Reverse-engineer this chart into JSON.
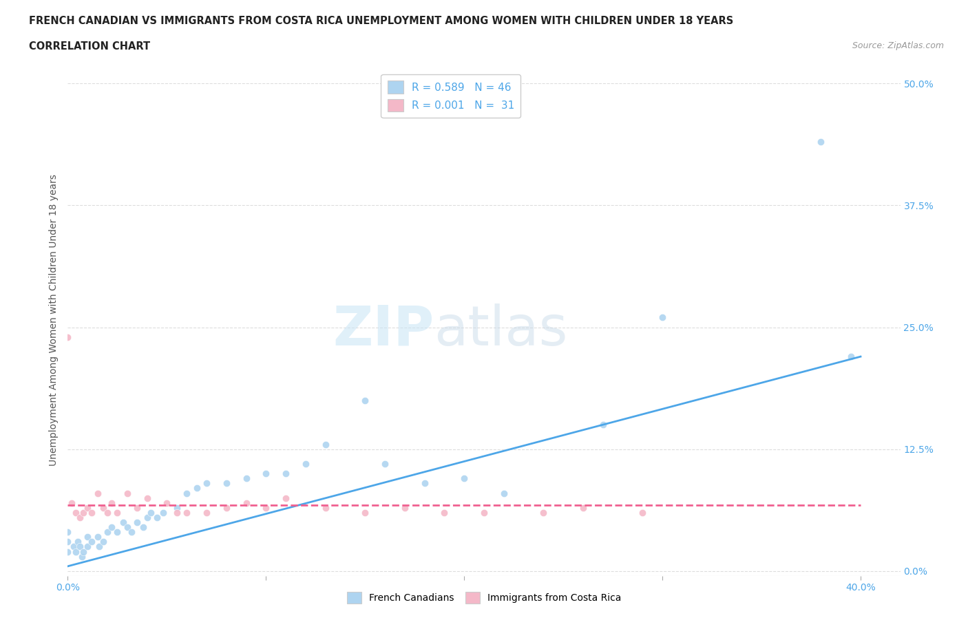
{
  "title_line1": "FRENCH CANADIAN VS IMMIGRANTS FROM COSTA RICA UNEMPLOYMENT AMONG WOMEN WITH CHILDREN UNDER 18 YEARS",
  "title_line2": "CORRELATION CHART",
  "source": "Source: ZipAtlas.com",
  "ylabel": "Unemployment Among Women with Children Under 18 years",
  "xlim": [
    0.0,
    0.42
  ],
  "ylim": [
    -0.005,
    0.52
  ],
  "yticks": [
    0.0,
    0.125,
    0.25,
    0.375,
    0.5
  ],
  "ytick_labels": [
    "0.0%",
    "12.5%",
    "25.0%",
    "37.5%",
    "50.0%"
  ],
  "xticks": [
    0.0,
    0.1,
    0.2,
    0.3,
    0.4
  ],
  "xtick_labels": [
    "0.0%",
    "",
    "",
    "",
    "40.0%"
  ],
  "blue_R": 0.589,
  "blue_N": 46,
  "pink_R": 0.001,
  "pink_N": 31,
  "blue_color": "#aed4f0",
  "pink_color": "#f4b8c8",
  "blue_line_color": "#4da6e8",
  "pink_line_color": "#f06090",
  "legend_label_blue": "French Canadians",
  "legend_label_pink": "Immigrants from Costa Rica",
  "blue_scatter_x": [
    0.0,
    0.0,
    0.0,
    0.003,
    0.004,
    0.005,
    0.006,
    0.007,
    0.008,
    0.01,
    0.01,
    0.012,
    0.015,
    0.016,
    0.018,
    0.02,
    0.022,
    0.025,
    0.028,
    0.03,
    0.032,
    0.035,
    0.038,
    0.04,
    0.042,
    0.045,
    0.048,
    0.055,
    0.06,
    0.065,
    0.07,
    0.08,
    0.09,
    0.1,
    0.11,
    0.12,
    0.13,
    0.15,
    0.16,
    0.18,
    0.2,
    0.22,
    0.27,
    0.3,
    0.38,
    0.395
  ],
  "blue_scatter_y": [
    0.02,
    0.03,
    0.04,
    0.025,
    0.02,
    0.03,
    0.025,
    0.015,
    0.02,
    0.025,
    0.035,
    0.03,
    0.035,
    0.025,
    0.03,
    0.04,
    0.045,
    0.04,
    0.05,
    0.045,
    0.04,
    0.05,
    0.045,
    0.055,
    0.06,
    0.055,
    0.06,
    0.065,
    0.08,
    0.085,
    0.09,
    0.09,
    0.095,
    0.1,
    0.1,
    0.11,
    0.13,
    0.175,
    0.11,
    0.09,
    0.095,
    0.08,
    0.15,
    0.26,
    0.44,
    0.22
  ],
  "pink_scatter_x": [
    0.0,
    0.002,
    0.004,
    0.006,
    0.008,
    0.01,
    0.012,
    0.015,
    0.018,
    0.02,
    0.022,
    0.025,
    0.03,
    0.035,
    0.04,
    0.05,
    0.055,
    0.06,
    0.07,
    0.08,
    0.09,
    0.1,
    0.11,
    0.13,
    0.15,
    0.17,
    0.19,
    0.21,
    0.24,
    0.26,
    0.29
  ],
  "pink_scatter_y": [
    0.24,
    0.07,
    0.06,
    0.055,
    0.06,
    0.065,
    0.06,
    0.08,
    0.065,
    0.06,
    0.07,
    0.06,
    0.08,
    0.065,
    0.075,
    0.07,
    0.06,
    0.06,
    0.06,
    0.065,
    0.07,
    0.065,
    0.075,
    0.065,
    0.06,
    0.065,
    0.06,
    0.06,
    0.06,
    0.065,
    0.06
  ],
  "blue_line_x": [
    0.0,
    0.4
  ],
  "blue_line_y": [
    0.005,
    0.22
  ],
  "pink_line_y": [
    0.068,
    0.068
  ],
  "grid_color": "#dddddd",
  "bg_color": "#ffffff"
}
